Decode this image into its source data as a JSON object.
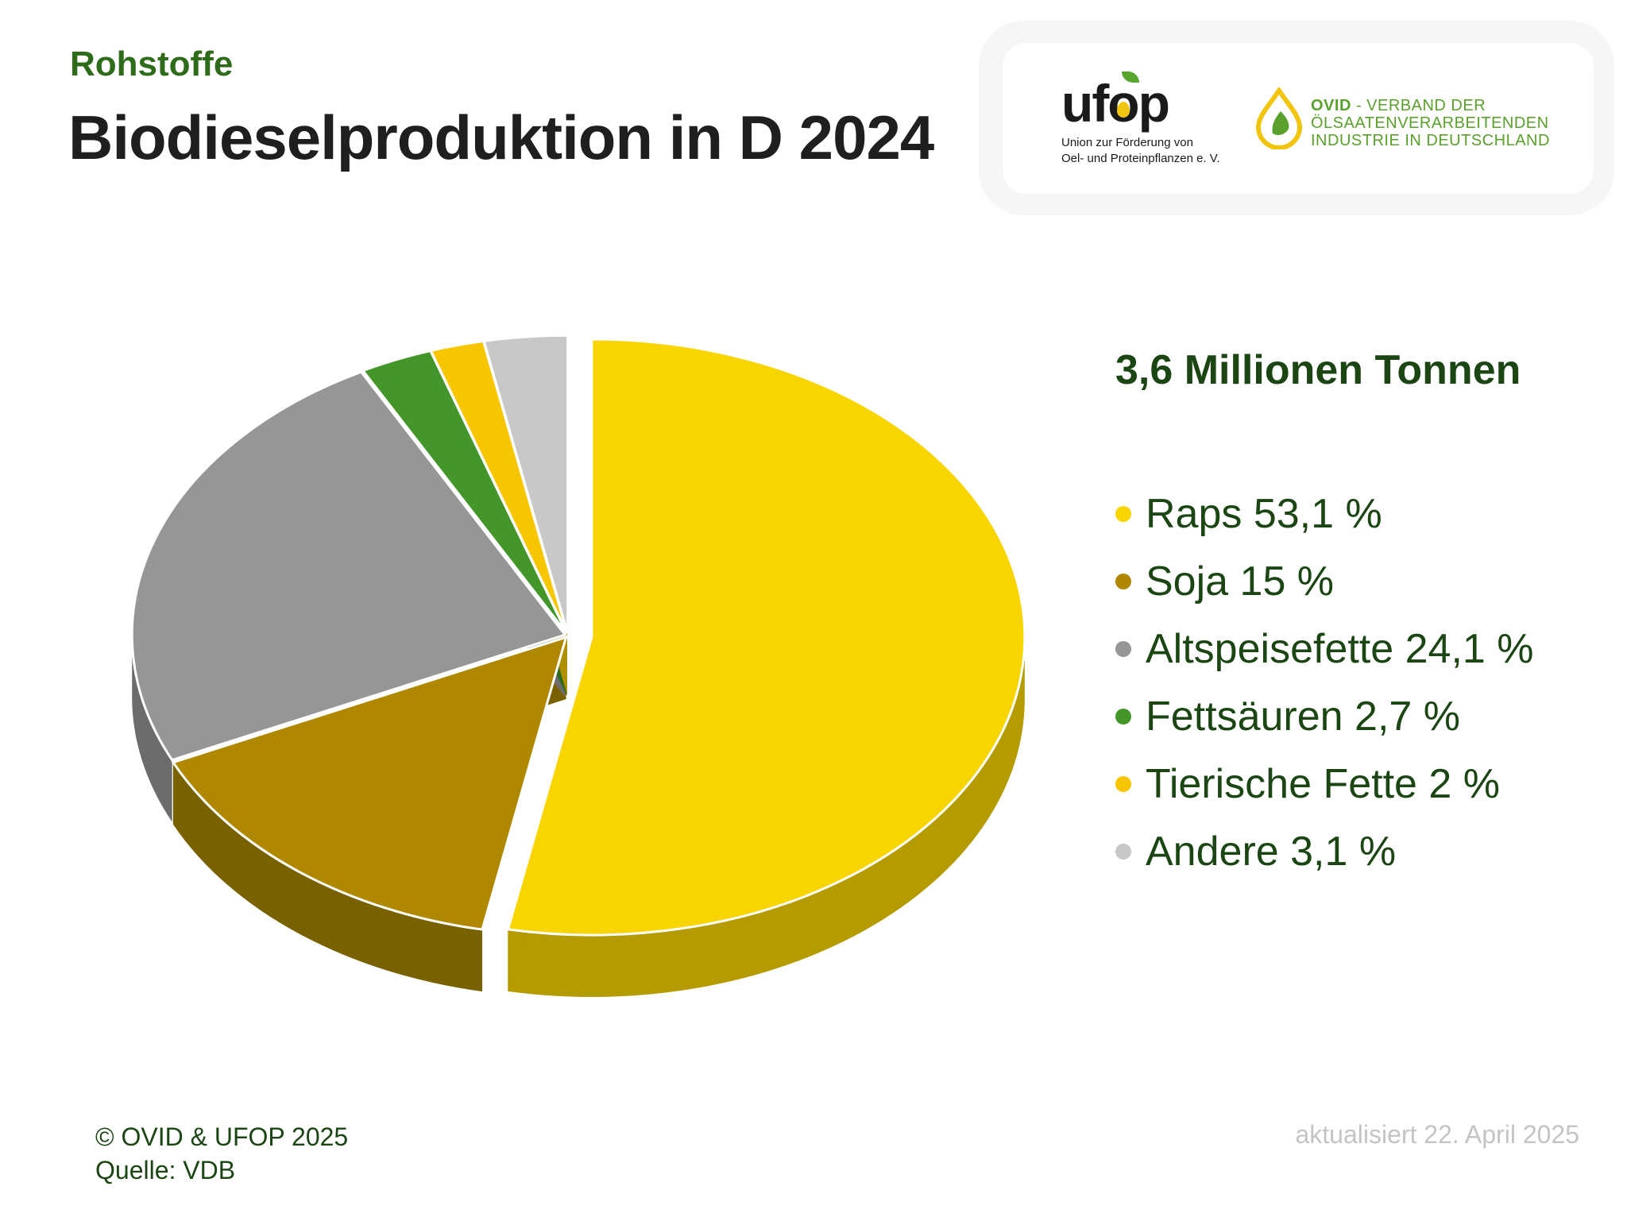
{
  "header": {
    "kicker": "Rohstoffe",
    "title": "Biodieselproduktion in D 2024"
  },
  "logos": {
    "ufop_mark": "ufop",
    "ufop_subtitle_line1": "Union zur Förderung von",
    "ufop_subtitle_line2": "Oel- und Proteinpflanzen e. V.",
    "ovid_name": "OVID",
    "ovid_line1": " - VERBAND DER",
    "ovid_line2": "ÖLSAATENVERARBEITENDEN",
    "ovid_line3": "INDUSTRIE IN DEUTSCHLAND"
  },
  "chart_data": {
    "type": "pie",
    "title": "Biodieselproduktion in D 2024",
    "total_label": "3,6 Millionen Tonnen",
    "legend_position": "right",
    "slices": [
      {
        "label": "Raps 53,1 %",
        "value": 53.1,
        "color": "#f8d500",
        "side": "#b39b00",
        "exploded": true
      },
      {
        "label": "Soja 15 %",
        "value": 15,
        "color": "#b08800",
        "side": "#7a6100",
        "exploded": false
      },
      {
        "label": "Altspeisefette 24,1 %",
        "value": 24.1,
        "color": "#969696",
        "side": "#6c6c6c",
        "exploded": false
      },
      {
        "label": "Fettsäuren 2,7 %",
        "value": 2.7,
        "color": "#44962a",
        "side": "#2e6a1c",
        "exploded": false
      },
      {
        "label": "Tierische Fette 2 %",
        "value": 2,
        "color": "#f7c600",
        "side": "#b08f00",
        "exploded": false
      },
      {
        "label": "Andere 3,1 %",
        "value": 3.1,
        "color": "#c8c8c8",
        "side": "#9a9a9a",
        "exploded": false
      }
    ]
  },
  "footer": {
    "copyright": "© OVID & UFOP 2025",
    "source": "Quelle: VDB",
    "updated": "aktualisiert 22. April 2025"
  }
}
